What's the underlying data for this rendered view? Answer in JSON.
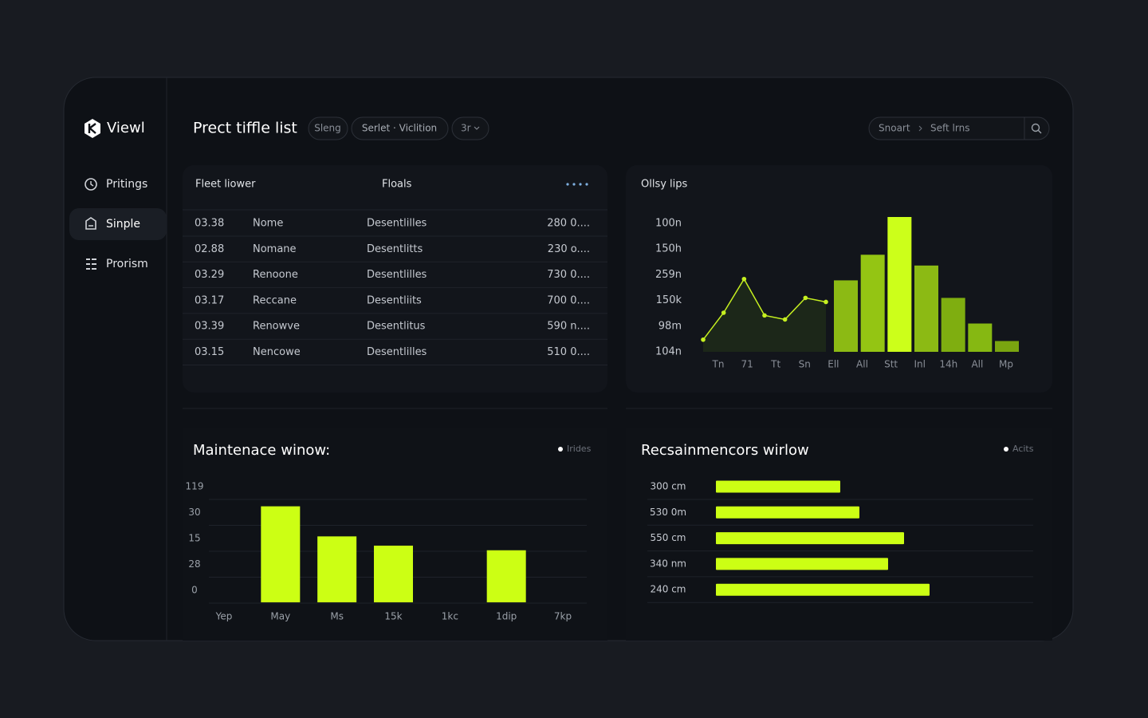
{
  "sidebar": {
    "brand": "Viewl",
    "nav": [
      "Pritings",
      "Sinple",
      "Prorism"
    ]
  },
  "header": {
    "title": "Prect tiffle list",
    "chips": [
      "Sleng",
      "Serlet · Viclition",
      "3r"
    ],
    "search": {
      "scope": "Snoart",
      "query": "Seft lrns"
    }
  },
  "table": {
    "columns": [
      "Fleet liower",
      "Floals"
    ],
    "rows": [
      [
        "03.38",
        "Nome",
        "Desentlilles",
        "280 0...."
      ],
      [
        "02.88",
        "Nomane",
        "Desentlitts",
        "230 o...."
      ],
      [
        "03.29",
        "Renoone",
        "Desentlilles",
        "730 0...."
      ],
      [
        "03.17",
        "Reccane",
        "Desentliits",
        "700 0...."
      ],
      [
        "03.39",
        "Renowve",
        "Desentlitus",
        "590 n...."
      ],
      [
        "03.15",
        "Nencowe",
        "Desentlilles",
        "510 0...."
      ]
    ]
  },
  "chart_data": [
    {
      "type": "combo",
      "title": "Ollsy lips",
      "y_labels": [
        "100n",
        "150h",
        "259n",
        "150k",
        "98m",
        "104n"
      ],
      "x_labels": [
        "Tn",
        "71",
        "Tt",
        "Sn",
        "Ell",
        "All",
        "Stt",
        "Inl",
        "14h",
        "All",
        "Mp"
      ],
      "ylim": [
        0,
        100
      ],
      "series": [
        {
          "type": "line",
          "color": "#c6f020",
          "values": [
            9,
            29,
            54,
            27,
            24,
            40,
            37
          ]
        },
        {
          "type": "bar",
          "colors": [
            "#8cba14",
            "#94c513",
            "#ccff1a",
            "#8cba14",
            "#7fae10",
            "#86b812",
            "#7aa510"
          ],
          "values": [
            53,
            72,
            100,
            64,
            40,
            21,
            8
          ]
        }
      ]
    },
    {
      "type": "bar",
      "title": "Maintenace winow:",
      "legend": "Irides",
      "y_labels": [
        "119",
        "30",
        "15",
        "28",
        "0"
      ],
      "categories": [
        "Yep",
        "May",
        "Ms",
        "15k",
        "1kc",
        "1dip",
        "7kp"
      ],
      "values": [
        null,
        83,
        57,
        49,
        null,
        45,
        null
      ],
      "ylim": [
        0,
        100
      ],
      "color": "#ccff14",
      "grid": true
    },
    {
      "type": "hbar",
      "title": "Recsainmencors wirlow",
      "legend": "Acits",
      "categories": [
        "300 cm",
        "530 0m",
        "550 cm",
        "340 nm",
        "240 cm"
      ],
      "values": [
        39,
        45,
        59,
        54,
        67
      ],
      "xlim": [
        0,
        100
      ],
      "color": "#ccff14",
      "grid": true
    }
  ]
}
